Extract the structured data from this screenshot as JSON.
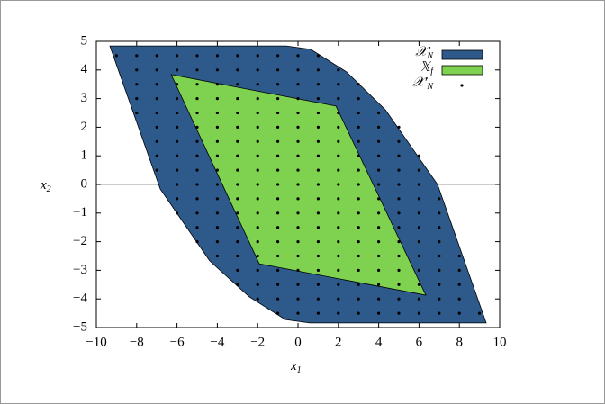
{
  "chart_data": {
    "type": "polygon",
    "x_label": "x",
    "x_label_sub": "1",
    "y_label": "x",
    "y_label_sub": "2",
    "xlim": [
      -10,
      10
    ],
    "ylim": [
      -5,
      5
    ],
    "xticks": [
      {
        "value": -10,
        "label": "−10"
      },
      {
        "value": -8,
        "label": "−8"
      },
      {
        "value": -6,
        "label": "−6"
      },
      {
        "value": -4,
        "label": "−4"
      },
      {
        "value": -2,
        "label": "−2"
      },
      0,
      2,
      4,
      6,
      8,
      10
    ],
    "yticks": [
      {
        "value": -5,
        "label": "−5"
      },
      {
        "value": -4,
        "label": "−4"
      },
      {
        "value": -3,
        "label": "−3"
      },
      {
        "value": -2,
        "label": "−2"
      },
      {
        "value": -1,
        "label": "−1"
      },
      0,
      1,
      2,
      3,
      4,
      5
    ],
    "zero_line": true,
    "legend": "upper right",
    "series": [
      {
        "name": "𝒳",
        "name_sub": "N",
        "kind": "polygon",
        "color": "#2e5a8b",
        "x": [
          -9.33,
          -0.58,
          0.63,
          2.41,
          4.33,
          6.92,
          9.33,
          0.58,
          -0.63,
          -2.41,
          -4.38,
          -6.83
        ],
        "y": [
          4.84,
          4.84,
          4.72,
          3.93,
          2.61,
          0.0,
          -4.84,
          -4.84,
          -4.72,
          -3.93,
          -2.67,
          -0.16
        ]
      },
      {
        "name": "𝕏",
        "name_sub": "f",
        "kind": "polygon",
        "color": "#7fd24f",
        "x": [
          -6.29,
          1.88,
          6.34,
          -1.92
        ],
        "y": [
          3.84,
          2.74,
          -3.87,
          -2.77
        ]
      },
      {
        "name": "𝒳′",
        "name_sub": "N",
        "kind": "scatter",
        "color": "#000000",
        "x": [
          -9,
          -8,
          -7,
          -6,
          -5,
          -4,
          -3,
          -2,
          -1,
          0,
          1,
          -8,
          -7,
          -6,
          -5,
          -4,
          -3,
          -2,
          -1,
          0,
          1,
          2,
          -8,
          -7,
          -6,
          -5,
          -4,
          -3,
          -2,
          -1,
          0,
          1,
          2,
          3,
          -8,
          -7,
          -6,
          -5,
          -4,
          -3,
          -2,
          -1,
          0,
          1,
          2,
          3,
          -8,
          -7,
          -6,
          -5,
          -4,
          -3,
          -2,
          -1,
          0,
          1,
          2,
          3,
          4,
          -7,
          -6,
          -5,
          -4,
          -3,
          -2,
          -1,
          0,
          1,
          2,
          3,
          4,
          5,
          -7,
          -6,
          -5,
          -4,
          -3,
          -2,
          -1,
          0,
          1,
          2,
          3,
          4,
          5,
          -7,
          -6,
          -5,
          -4,
          -3,
          -2,
          -1,
          0,
          1,
          2,
          3,
          4,
          5,
          6,
          -7,
          -6,
          -5,
          -4,
          -3,
          -2,
          -1,
          0,
          1,
          2,
          3,
          4,
          5,
          6,
          -6,
          -5,
          -4,
          -3,
          -2,
          -1,
          0,
          1,
          2,
          3,
          4,
          5,
          6,
          -6,
          -5,
          -4,
          -3,
          -2,
          -1,
          0,
          1,
          2,
          3,
          4,
          5,
          6,
          7,
          -6,
          -5,
          -4,
          -3,
          -2,
          -1,
          0,
          1,
          2,
          3,
          4,
          5,
          6,
          7,
          -5,
          -4,
          -3,
          -2,
          -1,
          0,
          1,
          2,
          3,
          4,
          5,
          6,
          7,
          -5,
          -4,
          -3,
          -2,
          -1,
          0,
          1,
          2,
          3,
          4,
          5,
          6,
          7,
          -4,
          -3,
          -2,
          -1,
          0,
          1,
          2,
          3,
          4,
          5,
          6,
          7,
          8,
          -3,
          -2,
          -1,
          0,
          1,
          2,
          3,
          4,
          5,
          6,
          7,
          8,
          -3,
          -2,
          -1,
          0,
          1,
          2,
          3,
          4,
          5,
          6,
          7,
          8,
          -2,
          -1,
          0,
          1,
          2,
          3,
          4,
          5,
          6,
          7,
          8,
          -1,
          0,
          1,
          2,
          3,
          4,
          5,
          6,
          7,
          8,
          9
        ],
        "y": [
          4.5,
          4.5,
          4.5,
          4.5,
          4.5,
          4.5,
          4.5,
          4.5,
          4.5,
          4.5,
          4.5,
          4,
          4,
          4,
          4,
          4,
          4,
          4,
          4,
          4,
          4,
          4,
          3.5,
          3.5,
          3.5,
          3.5,
          3.5,
          3.5,
          3.5,
          3.5,
          3.5,
          3.5,
          3.5,
          3.5,
          3,
          3,
          3,
          3,
          3,
          3,
          3,
          3,
          3,
          3,
          3,
          3,
          2.5,
          2.5,
          2.5,
          2.5,
          2.5,
          2.5,
          2.5,
          2.5,
          2.5,
          2.5,
          2.5,
          2.5,
          2.5,
          2,
          2,
          2,
          2,
          2,
          2,
          2,
          2,
          2,
          2,
          2,
          2,
          2,
          1.5,
          1.5,
          1.5,
          1.5,
          1.5,
          1.5,
          1.5,
          1.5,
          1.5,
          1.5,
          1.5,
          1.5,
          1.5,
          1,
          1,
          1,
          1,
          1,
          1,
          1,
          1,
          1,
          1,
          1,
          1,
          1,
          1,
          0.5,
          0.5,
          0.5,
          0.5,
          0.5,
          0.5,
          0.5,
          0.5,
          0.5,
          0.5,
          0.5,
          0.5,
          0.5,
          0.5,
          0,
          0,
          0,
          0,
          0,
          0,
          0,
          0,
          0,
          0,
          0,
          0,
          0,
          -0.5,
          -0.5,
          -0.5,
          -0.5,
          -0.5,
          -0.5,
          -0.5,
          -0.5,
          -0.5,
          -0.5,
          -0.5,
          -0.5,
          -0.5,
          -0.5,
          -1,
          -1,
          -1,
          -1,
          -1,
          -1,
          -1,
          -1,
          -1,
          -1,
          -1,
          -1,
          -1,
          -1,
          -1.5,
          -1.5,
          -1.5,
          -1.5,
          -1.5,
          -1.5,
          -1.5,
          -1.5,
          -1.5,
          -1.5,
          -1.5,
          -1.5,
          -1.5,
          -2,
          -2,
          -2,
          -2,
          -2,
          -2,
          -2,
          -2,
          -2,
          -2,
          -2,
          -2,
          -2,
          -2.5,
          -2.5,
          -2.5,
          -2.5,
          -2.5,
          -2.5,
          -2.5,
          -2.5,
          -2.5,
          -2.5,
          -2.5,
          -2.5,
          -2.5,
          -3,
          -3,
          -3,
          -3,
          -3,
          -3,
          -3,
          -3,
          -3,
          -3,
          -3,
          -3,
          -3.5,
          -3.5,
          -3.5,
          -3.5,
          -3.5,
          -3.5,
          -3.5,
          -3.5,
          -3.5,
          -3.5,
          -3.5,
          -3.5,
          -4,
          -4,
          -4,
          -4,
          -4,
          -4,
          -4,
          -4,
          -4,
          -4,
          -4,
          -4.5,
          -4.5,
          -4.5,
          -4.5,
          -4.5,
          -4.5,
          -4.5,
          -4.5,
          -4.5,
          -4.5,
          -4.5
        ]
      }
    ]
  }
}
